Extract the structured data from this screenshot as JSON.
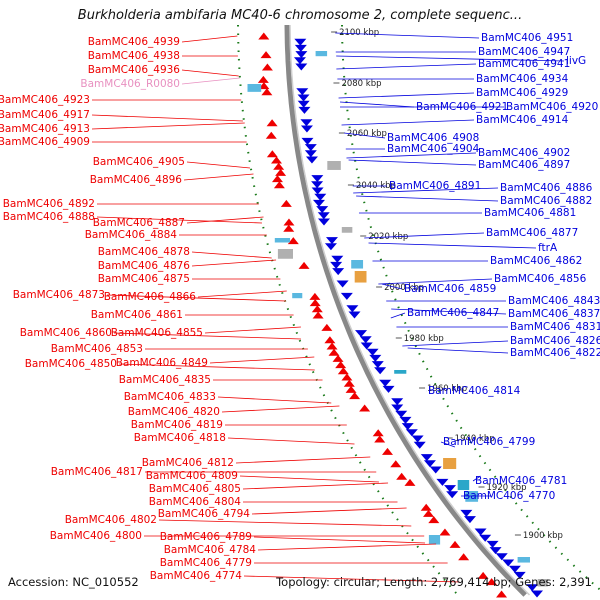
{
  "title": "Burkholderia ambifaria MC40-6 chromosome 2, complete sequenc...",
  "footer": {
    "accession": "Accession: NC_010552",
    "topology": "Topology: circular; Length: 2,769,414 bp; Genes: 2,391"
  },
  "colors": {
    "forward": "#ee0000",
    "reverse": "#0000dd",
    "pseudo": "#e890c0",
    "backbone": "#888888",
    "tick": "#1a7a1a"
  },
  "kbp_ticks": [
    "2100 kbp",
    "2080 kbp",
    "2060 kbp",
    "2040 kbp",
    "2020 kbp",
    "2000 kbp",
    "1980 kbp",
    "1960 kbp",
    "1940 kbp",
    "1920 kbp",
    "1900 kbp"
  ],
  "left_labels": [
    {
      "text": "BamMC406_4939",
      "strand": "forward"
    },
    {
      "text": "BamMC406_4938",
      "strand": "forward"
    },
    {
      "text": "BamMC406_4936",
      "strand": "forward"
    },
    {
      "text": "BamMC406_R0080",
      "strand": "pseudo"
    },
    {
      "text": "BamMC406_4923",
      "strand": "forward"
    },
    {
      "text": "BamMC406_4917",
      "strand": "forward"
    },
    {
      "text": "BamMC406_4913",
      "strand": "forward"
    },
    {
      "text": "BamMC406_4909",
      "strand": "forward"
    },
    {
      "text": "BamMC406_4905",
      "strand": "forward"
    },
    {
      "text": "BamMC406_4896",
      "strand": "forward"
    },
    {
      "text": "BamMC406_4892",
      "strand": "forward"
    },
    {
      "text": "BamMC406_4888",
      "strand": "forward"
    },
    {
      "text": "BamMC406_4887",
      "strand": "forward"
    },
    {
      "text": "BamMC406_4884",
      "strand": "forward"
    },
    {
      "text": "BamMC406_4878",
      "strand": "forward"
    },
    {
      "text": "BamMC406_4876",
      "strand": "forward"
    },
    {
      "text": "BamMC406_4875",
      "strand": "forward"
    },
    {
      "text": "BamMC406_4873",
      "strand": "forward"
    },
    {
      "text": "BamMC406_4866",
      "strand": "forward"
    },
    {
      "text": "BamMC406_4861",
      "strand": "forward"
    },
    {
      "text": "BamMC406_4860",
      "strand": "forward"
    },
    {
      "text": "BamMC406_4855",
      "strand": "forward"
    },
    {
      "text": "BamMC406_4853",
      "strand": "forward"
    },
    {
      "text": "BamMC406_4850",
      "strand": "forward"
    },
    {
      "text": "BamMC406_4849",
      "strand": "forward"
    },
    {
      "text": "BamMC406_4835",
      "strand": "forward"
    },
    {
      "text": "BamMC406_4833",
      "strand": "forward"
    },
    {
      "text": "BamMC406_4820",
      "strand": "forward"
    },
    {
      "text": "BamMC406_4819",
      "strand": "forward"
    },
    {
      "text": "BamMC406_4818",
      "strand": "forward"
    },
    {
      "text": "BamMC406_4812",
      "strand": "forward"
    },
    {
      "text": "BamMC406_4817",
      "strand": "forward"
    },
    {
      "text": "BamMC406_4809",
      "strand": "forward"
    },
    {
      "text": "BamMC406_4805",
      "strand": "forward"
    },
    {
      "text": "BamMC406_4804",
      "strand": "forward"
    },
    {
      "text": "BamMC406_4802",
      "strand": "forward"
    },
    {
      "text": "BamMC406_4794",
      "strand": "forward"
    },
    {
      "text": "BamMC406_4800",
      "strand": "forward"
    },
    {
      "text": "BamMC406_4789",
      "strand": "forward"
    },
    {
      "text": "BamMC406_4784",
      "strand": "forward"
    },
    {
      "text": "BamMC406_4779",
      "strand": "forward"
    },
    {
      "text": "BamMC406_4774",
      "strand": "forward"
    }
  ],
  "right_labels": [
    {
      "text": "BamMC406_4951",
      "strand": "reverse"
    },
    {
      "text": "BamMC406_4947",
      "strand": "reverse"
    },
    {
      "text": "BamMC406_4941",
      "strand": "reverse"
    },
    {
      "text": "livG",
      "strand": "reverse"
    },
    {
      "text": "BamMC406_4934",
      "strand": "reverse"
    },
    {
      "text": "BamMC406_4929",
      "strand": "reverse"
    },
    {
      "text": "BamMC406_4921",
      "strand": "reverse"
    },
    {
      "text": "BamMC406_4920",
      "strand": "reverse"
    },
    {
      "text": "BamMC406_4914",
      "strand": "reverse"
    },
    {
      "text": "BamMC406_4908",
      "strand": "reverse"
    },
    {
      "text": "BamMC406_4904",
      "strand": "reverse"
    },
    {
      "text": "BamMC406_4902",
      "strand": "reverse"
    },
    {
      "text": "BamMC406_4897",
      "strand": "reverse"
    },
    {
      "text": "BamMC406_4891",
      "strand": "reverse"
    },
    {
      "text": "BamMC406_4886",
      "strand": "reverse"
    },
    {
      "text": "BamMC406_4882",
      "strand": "reverse"
    },
    {
      "text": "BamMC406_4881",
      "strand": "reverse"
    },
    {
      "text": "BamMC406_4877",
      "strand": "reverse"
    },
    {
      "text": "ftrA",
      "strand": "reverse"
    },
    {
      "text": "BamMC406_4862",
      "strand": "reverse"
    },
    {
      "text": "BamMC406_4856",
      "strand": "reverse"
    },
    {
      "text": "BamMC406_4859",
      "strand": "reverse"
    },
    {
      "text": "BamMC406_4843",
      "strand": "reverse"
    },
    {
      "text": "BamMC406_4847",
      "strand": "reverse"
    },
    {
      "text": "BamMC406_4837",
      "strand": "reverse"
    },
    {
      "text": "BamMC406_4831",
      "strand": "reverse"
    },
    {
      "text": "BamMC406_4826",
      "strand": "reverse"
    },
    {
      "text": "BamMC406_4822",
      "strand": "reverse"
    },
    {
      "text": "BamMC406_4814",
      "strand": "reverse"
    },
    {
      "text": "BamMC406_4799",
      "strand": "reverse"
    },
    {
      "text": "BamMC406_4781",
      "strand": "reverse"
    },
    {
      "text": "BamMC406_4770",
      "strand": "reverse"
    }
  ]
}
